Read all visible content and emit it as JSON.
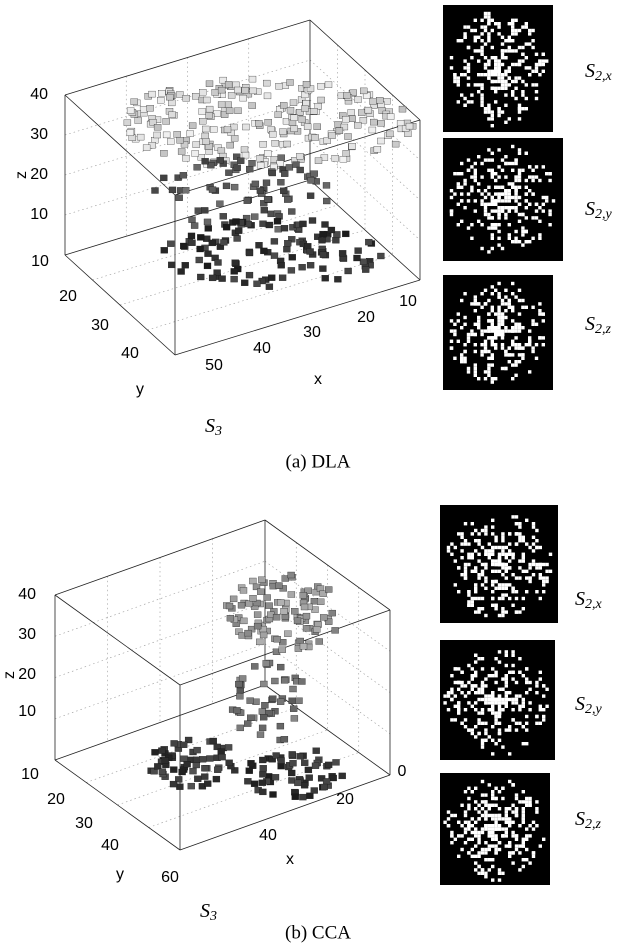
{
  "panels": [
    {
      "caption": "(a) DLA",
      "plot": {
        "symbol": "S",
        "subscript": "3",
        "z_label": "z",
        "y_label": "y",
        "x_label": "x",
        "z_ticks": [
          40,
          30,
          20,
          10
        ],
        "y_ticks": [
          10,
          20,
          30,
          40
        ],
        "x_ticks": [
          50,
          40,
          30,
          20,
          10
        ]
      },
      "projections": [
        {
          "symbol": "S",
          "subscript": "2,x"
        },
        {
          "symbol": "S",
          "subscript": "2,y"
        },
        {
          "symbol": "S",
          "subscript": "2,z"
        }
      ]
    },
    {
      "caption": "(b) CCA",
      "plot": {
        "symbol": "S",
        "subscript": "3",
        "z_label": "z",
        "y_label": "y",
        "x_label": "x",
        "z_ticks": [
          40,
          30,
          20,
          10
        ],
        "y_ticks": [
          10,
          20,
          30,
          40
        ],
        "x_ticks": [
          60,
          40,
          20,
          0
        ]
      },
      "projections": [
        {
          "symbol": "S",
          "subscript": "2,x"
        },
        {
          "symbol": "S",
          "subscript": "2,y"
        },
        {
          "symbol": "S",
          "subscript": "2,z"
        }
      ]
    }
  ]
}
